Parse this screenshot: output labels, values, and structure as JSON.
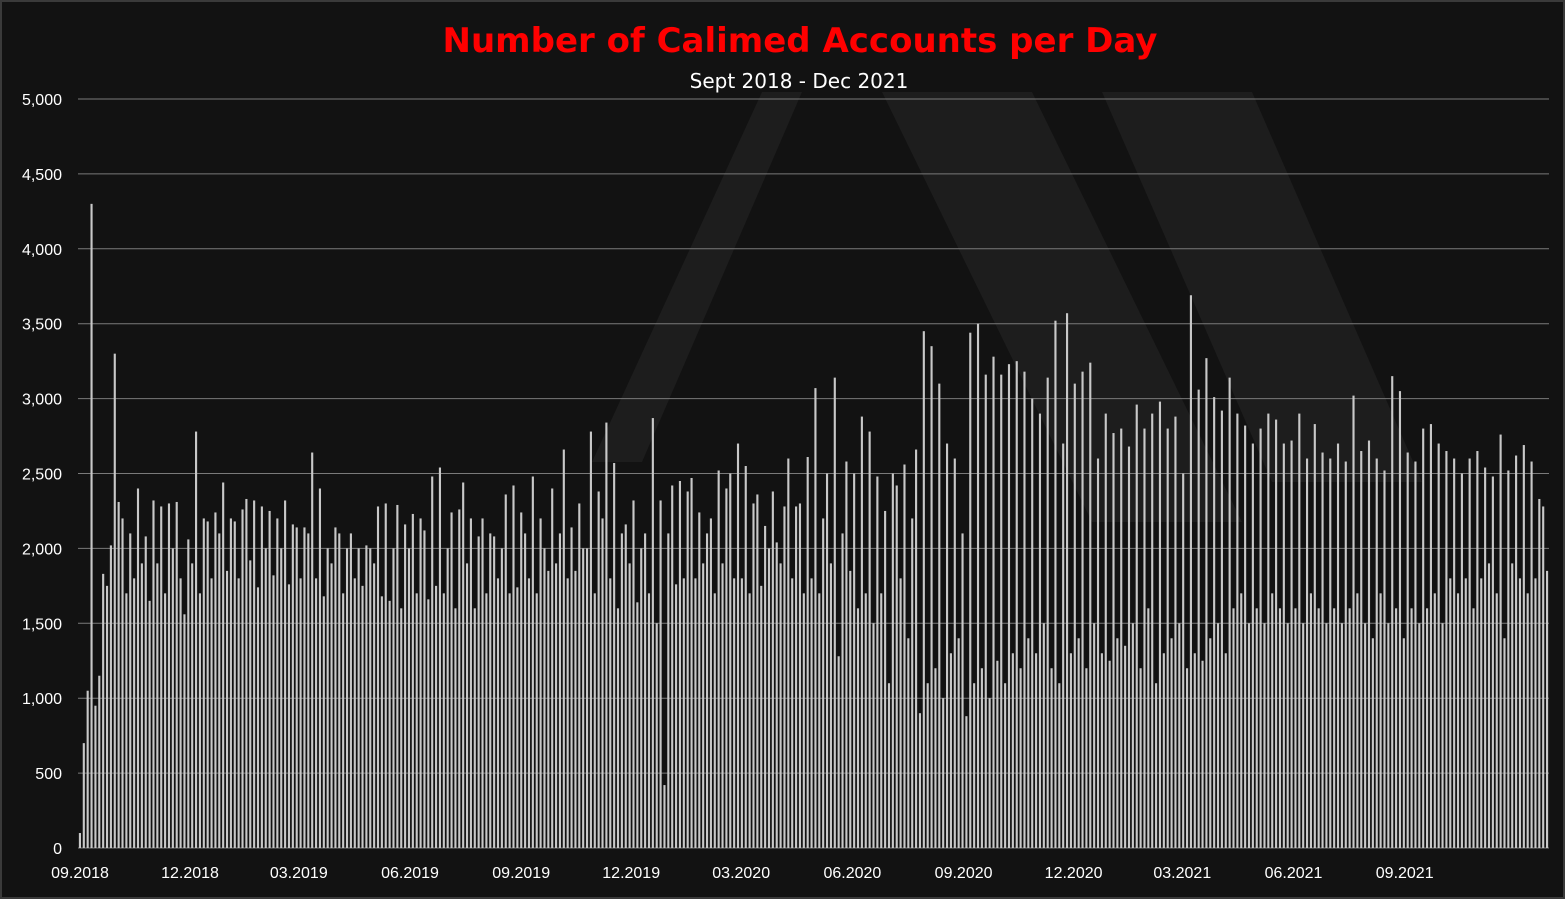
{
  "chart_data": {
    "type": "bar",
    "title": "Number of Calimed Accounts per Day",
    "subtitle": "Sept 2018 - Dec 2021",
    "xlabel": "",
    "ylabel": "",
    "ylim": [
      0,
      5000
    ],
    "y_ticks": [
      0,
      500,
      1000,
      1500,
      2000,
      2500,
      3000,
      3500,
      4000,
      4500,
      5000
    ],
    "y_tick_labels": [
      "0",
      "500",
      "1,000",
      "1,500",
      "2,000",
      "2,500",
      "3,000",
      "3,500",
      "4,000",
      "4,500",
      "5,000"
    ],
    "x_start": "2018-09-01",
    "x_end": "2021-12-31",
    "x_ticks": [
      {
        "date": "2018-09-01",
        "label": "09.2018"
      },
      {
        "date": "2018-12-01",
        "label": "12.2018"
      },
      {
        "date": "2019-03-01",
        "label": "03.2019"
      },
      {
        "date": "2019-06-01",
        "label": "06.2019"
      },
      {
        "date": "2019-09-01",
        "label": "09.2019"
      },
      {
        "date": "2019-12-01",
        "label": "12.2019"
      },
      {
        "date": "2020-03-01",
        "label": "03.2020"
      },
      {
        "date": "2020-06-01",
        "label": "06.2020"
      },
      {
        "date": "2020-09-01",
        "label": "09.2020"
      },
      {
        "date": "2020-12-01",
        "label": "12.2020"
      },
      {
        "date": "2021-03-01",
        "label": "03.2021"
      },
      {
        "date": "2021-06-01",
        "label": "06.2021"
      },
      {
        "date": "2021-09-01",
        "label": "09.2021"
      }
    ],
    "grid": true,
    "legend": "none",
    "bar_color": "#c8c8c8",
    "title_color": "#ff0000",
    "background": "#121212",
    "series": [
      {
        "values": [
          100,
          700,
          1050,
          4300,
          950,
          1150,
          1830,
          1750,
          2020,
          3300,
          2310,
          2200,
          1700,
          2100,
          1800,
          2400,
          1900,
          2080,
          1650,
          2320,
          1900,
          2280,
          1700,
          2300,
          2000,
          2310,
          1800,
          1560,
          2060,
          1900,
          2780,
          1700,
          2200,
          2180,
          1800,
          2240,
          2100,
          2440,
          1850,
          2200,
          2180,
          1800,
          2260,
          2330,
          1920,
          2320,
          1740,
          2280,
          2000,
          2250,
          1820,
          2200,
          2000,
          2320,
          1760,
          2160,
          2140,
          1800,
          2140,
          2100,
          2640,
          1800,
          2400,
          1680,
          2000,
          1900,
          2140,
          2100,
          1700,
          2000,
          2100,
          1800,
          2000,
          1750,
          2020,
          2000,
          1900,
          2280,
          1680,
          2300,
          1650,
          2000,
          2290,
          1600,
          2160,
          2000,
          2230,
          1700,
          2200,
          2120,
          1660,
          2480,
          1750,
          2540,
          1700,
          2000,
          2240,
          1600,
          2260,
          2440,
          1900,
          2200,
          1600,
          2080,
          2200,
          1700,
          2100,
          2080,
          1800,
          2000,
          2360,
          1700,
          2420,
          1740,
          2240,
          2100,
          1800,
          2480,
          1700,
          2200,
          2000,
          1850,
          2400,
          1900,
          2100,
          2660,
          1800,
          2140,
          1850,
          2300,
          2000,
          2000,
          2780,
          1700,
          2380,
          2200,
          2840,
          1800,
          2570,
          1600,
          2100,
          2160,
          1900,
          2320,
          1640,
          2000,
          2100,
          1700,
          2870,
          1500,
          2320,
          420,
          2100,
          2420,
          1760,
          2450,
          1800,
          2380,
          2470,
          1800,
          2240,
          1900,
          2100,
          2200,
          1700,
          2520,
          1900,
          2400,
          2500,
          1800,
          2700,
          1800,
          2550,
          1700,
          2300,
          2360,
          1750,
          2150,
          2000,
          2380,
          2040,
          1900,
          2280,
          2600,
          1800,
          2280,
          2300,
          1700,
          2610,
          1800,
          3070,
          1700,
          2200,
          2500,
          1900,
          3140,
          1280,
          2100,
          2580,
          1850,
          2500,
          1600,
          2880,
          1700,
          2780,
          1500,
          2480,
          1700,
          2250,
          1100,
          2500,
          2420,
          1800,
          2560,
          1400,
          2200,
          2660,
          900,
          3450,
          1100,
          3350,
          1200,
          3100,
          1000,
          2700,
          1300,
          2600,
          1400,
          2100,
          880,
          3440,
          1100,
          3500,
          1200,
          3160,
          1000,
          3280,
          1250,
          3160,
          1100,
          3230,
          1300,
          3250,
          1200,
          3180,
          1400,
          3000,
          1300,
          2900,
          1500,
          3140,
          1200,
          3520,
          1100,
          2700,
          3570,
          1300,
          3100,
          1400,
          3180,
          1200,
          3240,
          1500,
          2600,
          1300,
          2900,
          1250,
          2770,
          1400,
          2800,
          1350,
          2680,
          1500,
          2960,
          1200,
          2800,
          1600,
          2900,
          1100,
          2980,
          1300,
          2800,
          1400,
          2880,
          1500,
          2500,
          1200,
          3690,
          1300,
          3060,
          1250,
          3270,
          1400,
          3010,
          1500,
          2920,
          1300,
          3140,
          1600,
          2900,
          1700,
          2820,
          1500,
          2700,
          1600,
          2800,
          1500,
          2900,
          1700,
          2860,
          1600,
          2700,
          1500,
          2720,
          1600,
          2900,
          1500,
          2600,
          1700,
          2830,
          1600,
          2640,
          1500,
          2600,
          1600,
          2700,
          1500,
          2580,
          1600,
          3020,
          1700,
          2650,
          1500,
          2720,
          1400,
          2600,
          1700,
          2520,
          1500,
          3150,
          1600,
          3050,
          1400,
          2640,
          1600,
          2580,
          1500,
          2800,
          1600,
          2830,
          1700,
          2700,
          1500,
          2650,
          1800,
          2600,
          1700,
          2500,
          1800,
          2600,
          1600,
          2650,
          1800,
          2540,
          1900,
          2480,
          1700,
          2760,
          1400,
          2520,
          1900,
          2620,
          1800,
          2690,
          1700,
          2580,
          1800,
          2330,
          2280,
          1850
        ]
      }
    ]
  }
}
